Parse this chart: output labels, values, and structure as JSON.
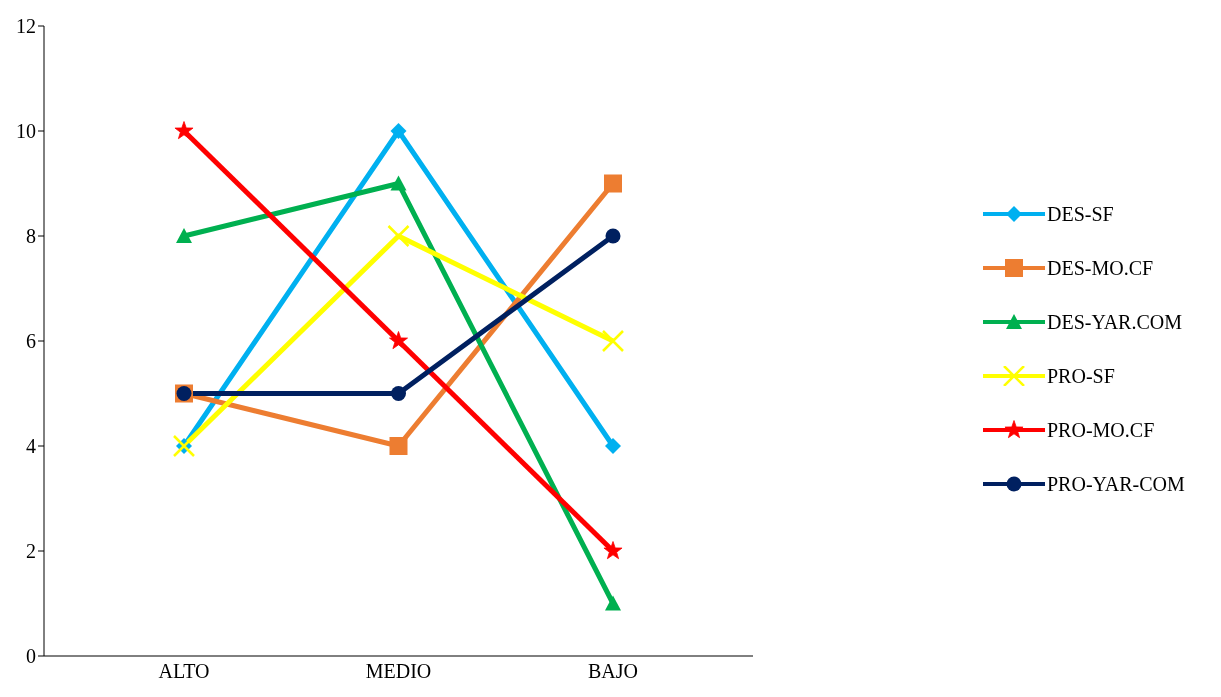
{
  "chart_data": {
    "type": "line",
    "categories": [
      "ALTO",
      "MEDIO",
      "BAJO"
    ],
    "ylim": [
      0,
      12
    ],
    "yticks": [
      0,
      2,
      4,
      6,
      8,
      10,
      12
    ],
    "grid": false,
    "legend": "right",
    "series": [
      {
        "name": "DES-SF",
        "color": "#00b0f0",
        "marker": "diamond",
        "values": [
          4,
          10,
          4
        ]
      },
      {
        "name": "DES-MO.CF",
        "color": "#ed7d31",
        "marker": "square",
        "values": [
          5,
          4,
          9
        ]
      },
      {
        "name": "DES-YAR.COM",
        "color": "#00b050",
        "marker": "triangle",
        "values": [
          8,
          9,
          1
        ]
      },
      {
        "name": "PRO-SF",
        "color": "#ffff00",
        "marker": "cross",
        "values": [
          4,
          8,
          6
        ]
      },
      {
        "name": "PRO-MO.CF",
        "color": "#ff0000",
        "marker": "star",
        "values": [
          10,
          6,
          2
        ]
      },
      {
        "name": "PRO-YAR-COM",
        "color": "#002060",
        "marker": "circle",
        "values": [
          5,
          5,
          8
        ]
      }
    ]
  }
}
